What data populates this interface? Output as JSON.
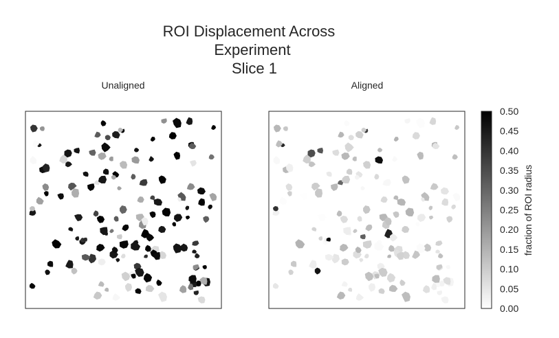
{
  "chart_data": {
    "type": "heatmap",
    "title_lines": [
      "ROI Displacement Across",
      "Experiment",
      "Slice 1"
    ],
    "panels": [
      {
        "name": "unaligned",
        "title": "Unaligned"
      },
      {
        "name": "aligned",
        "title": "Aligned"
      }
    ],
    "colorbar": {
      "label": "fraction of ROI radius",
      "range": [
        0.0,
        0.5
      ],
      "ticks": [
        "0.00",
        "0.05",
        "0.10",
        "0.15",
        "0.20",
        "0.25",
        "0.30",
        "0.35",
        "0.40",
        "0.45",
        "0.50"
      ],
      "colormap": [
        "#ffffff",
        "#000000"
      ]
    },
    "roi_count": 150,
    "seed": 7
  }
}
